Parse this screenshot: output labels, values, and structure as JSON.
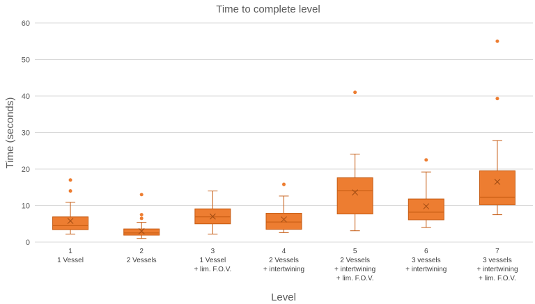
{
  "chart_data": {
    "type": "box",
    "title": "Time to complete level",
    "xlabel": "Level",
    "ylabel": "Time (seconds)",
    "ylim": [
      0,
      60
    ],
    "yticks": [
      0,
      10,
      20,
      30,
      40,
      50,
      60
    ],
    "grid": true,
    "colors": {
      "box": "#ed7d31",
      "edge": "#c55a11"
    },
    "categories": [
      {
        "lines": [
          "1",
          "1 Vessel"
        ]
      },
      {
        "lines": [
          "2",
          "2 Vessels"
        ]
      },
      {
        "lines": [
          "3",
          "1 Vessel",
          "+ lim. F.O.V."
        ]
      },
      {
        "lines": [
          "4",
          "2 Vessels",
          "+ intertwining"
        ]
      },
      {
        "lines": [
          "5",
          "2 Vessels",
          "+ intertwining",
          "+ lim. F.O.V."
        ]
      },
      {
        "lines": [
          "6",
          "3 vessels",
          "+ intertwining"
        ]
      },
      {
        "lines": [
          "7",
          "3 vessels",
          "+ intertwining",
          "+ lim. F.O.V."
        ]
      }
    ],
    "boxes": [
      {
        "min": 2.2,
        "q1": 3.4,
        "median": 4.5,
        "q3": 6.9,
        "max": 10.9,
        "mean": 5.8,
        "outliers": [
          14.0,
          17.0
        ]
      },
      {
        "min": 1.0,
        "q1": 1.9,
        "median": 2.5,
        "q3": 3.6,
        "max": 5.4,
        "mean": 3.0,
        "outliers": [
          6.5,
          7.5,
          13.0
        ]
      },
      {
        "min": 2.2,
        "q1": 5.0,
        "median": 6.9,
        "q3": 9.1,
        "max": 14.0,
        "mean": 7.0,
        "outliers": []
      },
      {
        "min": 2.6,
        "q1": 3.5,
        "median": 5.5,
        "q3": 7.9,
        "max": 12.6,
        "mean": 6.2,
        "outliers": [
          15.8
        ]
      },
      {
        "min": 3.1,
        "q1": 7.7,
        "median": 14.1,
        "q3": 17.6,
        "max": 24.1,
        "mean": 13.6,
        "outliers": [
          41.0
        ]
      },
      {
        "min": 4.0,
        "q1": 6.1,
        "median": 8.2,
        "q3": 11.8,
        "max": 19.2,
        "mean": 9.8,
        "outliers": [
          22.5
        ]
      },
      {
        "min": 7.5,
        "q1": 10.2,
        "median": 12.3,
        "q3": 19.5,
        "max": 27.8,
        "mean": 16.5,
        "outliers": [
          39.3,
          55.0
        ]
      }
    ]
  }
}
